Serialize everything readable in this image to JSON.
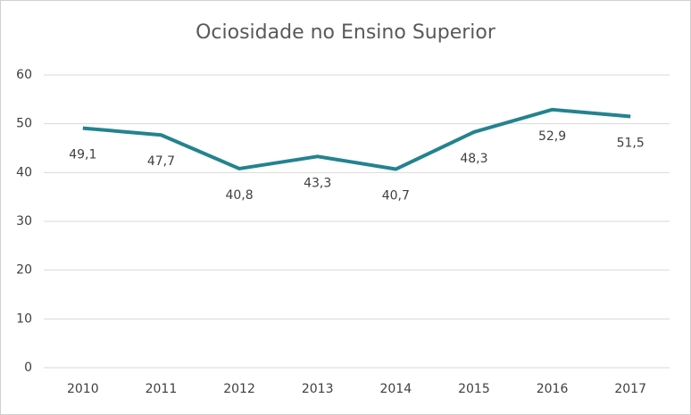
{
  "chart_data": {
    "type": "line",
    "title": "Ociosidade no Ensino Superior",
    "categories": [
      "2010",
      "2011",
      "2012",
      "2013",
      "2014",
      "2015",
      "2016",
      "2017"
    ],
    "values": [
      49.1,
      47.7,
      40.8,
      43.3,
      40.7,
      48.3,
      52.9,
      51.5
    ],
    "value_labels": [
      "49,1",
      "47,7",
      "40,8",
      "43,3",
      "40,7",
      "48,3",
      "52,9",
      "51,5"
    ],
    "color": "#23838f",
    "ylim": [
      0,
      60
    ],
    "yticks": [
      0,
      10,
      20,
      30,
      40,
      50,
      60
    ],
    "grid": true
  }
}
